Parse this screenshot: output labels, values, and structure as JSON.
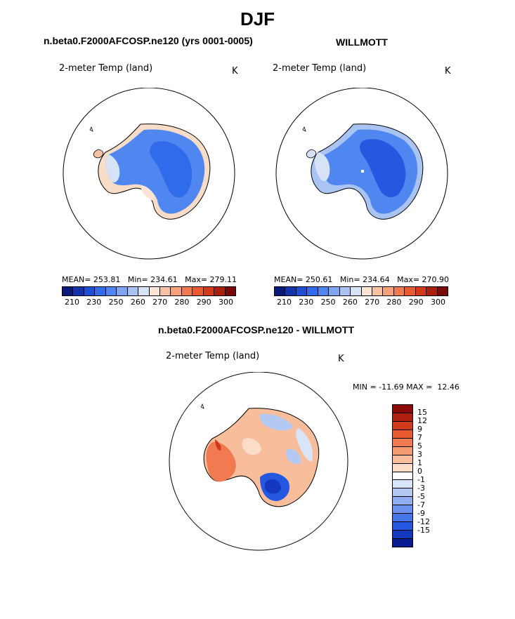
{
  "title": "DJF",
  "panels": {
    "model": {
      "title": "n.beta0.F2000AFCOSP.ne120 (yrs 0001-0005)",
      "variable": "2-meter Temp (land)",
      "units": "K",
      "stats": "MEAN= 253.81   Min= 234.61   Max= 279.11"
    },
    "obs": {
      "title": "WILLMOTT",
      "variable": "2-meter Temp (land)",
      "units": "K",
      "stats": "MEAN= 250.61   Min= 234.64   Max= 270.90"
    },
    "diff": {
      "title": "n.beta0.F2000AFCOSP.ne120 - WILLMOTT",
      "variable": "2-meter Temp (land)",
      "units": "K",
      "minmax": "MIN = -11.69 MAX =  12.46"
    }
  },
  "abs_colorbar": {
    "colors": [
      "#0a1a78",
      "#1533a8",
      "#1f4fd0",
      "#2f6bea",
      "#4f86f0",
      "#7ea4f2",
      "#a9c3f3",
      "#d6e3f7",
      "#fbe4d3",
      "#f7c2a3",
      "#f4a07a",
      "#f17a50",
      "#e85a30",
      "#d03a1a",
      "#a82010",
      "#780a08"
    ],
    "ticks": [
      "210",
      "230",
      "250",
      "260",
      "270",
      "280",
      "290",
      "300"
    ]
  },
  "diff_colorbar": {
    "colors": [
      "#8a0a08",
      "#b02010",
      "#d03a1a",
      "#e85a30",
      "#f27a50",
      "#f59b72",
      "#f8bd9b",
      "#fbdcc6",
      "#ffffff",
      "#d8e4f7",
      "#b3c9f2",
      "#8dadf0",
      "#6a92ee",
      "#4675ea",
      "#2558e0",
      "#1438c0",
      "#0a1a90"
    ],
    "ticks": [
      "15",
      "12",
      "9",
      "7",
      "5",
      "3",
      "1",
      "0",
      "-1",
      "-3",
      "-5",
      "-7",
      "-9",
      "-12",
      "-15"
    ]
  }
}
